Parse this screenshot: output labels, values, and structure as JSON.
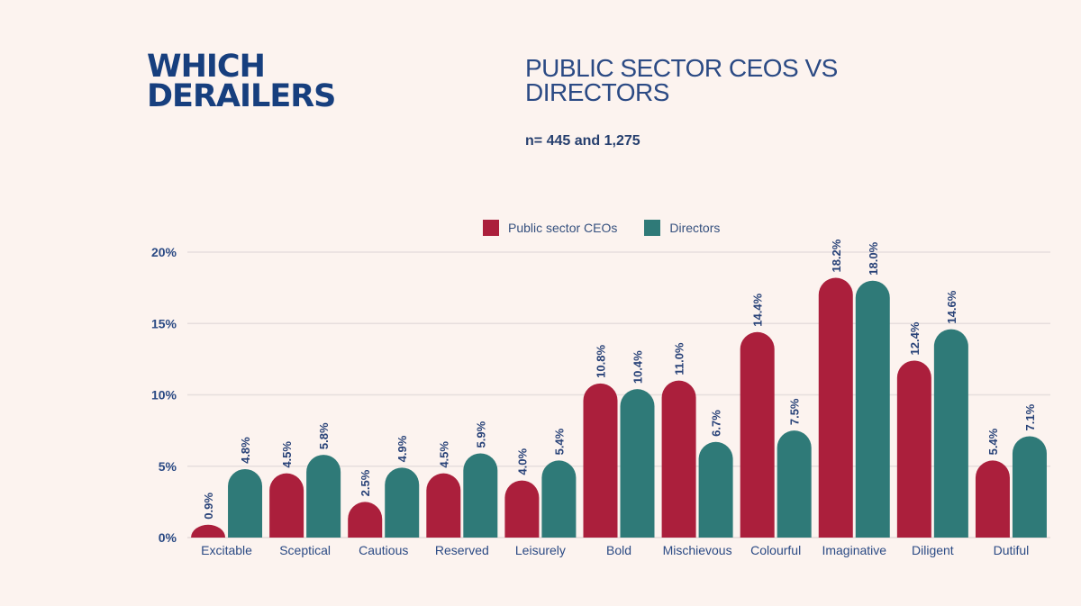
{
  "header": {
    "title_line1": "WHICH",
    "title_line2": "DERAILERS",
    "subtitle_line1": "PUBLIC SECTOR CEOS VS",
    "subtitle_line2": "DIRECTORS",
    "sample_note": "n= 445 and 1,275"
  },
  "colors": {
    "ceo": "#ab1f3c",
    "directors": "#2f7a78",
    "text": "#2b4a84",
    "grid": "#e6dedd"
  },
  "chart_data": {
    "type": "bar",
    "title": "PUBLIC SECTOR CEOS VS DIRECTORS",
    "xlabel": "",
    "ylabel": "",
    "ylim": [
      0,
      20
    ],
    "yticks": [
      "0%",
      "5%",
      "10%",
      "15%",
      "20%"
    ],
    "ytick_values": [
      0,
      5,
      10,
      15,
      20
    ],
    "grid": true,
    "legend_position": "top-center",
    "categories": [
      "Excitable",
      "Sceptical",
      "Cautious",
      "Reserved",
      "Leisurely",
      "Bold",
      "Mischievous",
      "Colourful",
      "Imaginative",
      "Diligent",
      "Dutiful"
    ],
    "series": [
      {
        "name": "Public sector CEOs",
        "values": [
          0.9,
          4.5,
          2.5,
          4.5,
          4.0,
          10.8,
          11.0,
          14.4,
          18.2,
          12.4,
          5.4
        ],
        "labels": [
          "0.9%",
          "4.5%",
          "2.5%",
          "4.5%",
          "4.0%",
          "10.8%",
          "11.0%",
          "14.4%",
          "18.2%",
          "12.4%",
          "5.4%"
        ]
      },
      {
        "name": "Directors",
        "values": [
          4.8,
          5.8,
          4.9,
          5.9,
          5.4,
          10.4,
          6.7,
          7.5,
          18.0,
          14.6,
          7.1
        ],
        "labels": [
          "4.8%",
          "5.8%",
          "4.9%",
          "5.9%",
          "5.4%",
          "10.4%",
          "6.7%",
          "7.5%",
          "18.0%",
          "14.6%",
          "7.1%"
        ]
      }
    ]
  }
}
